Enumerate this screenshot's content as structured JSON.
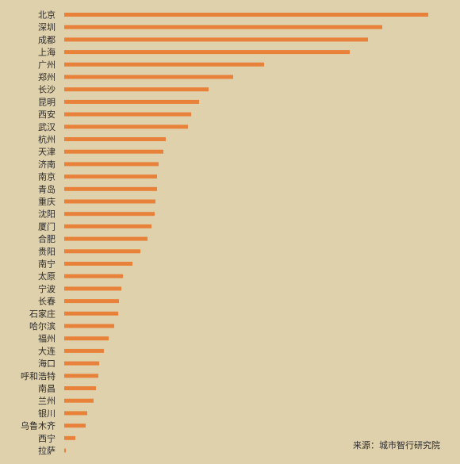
{
  "chart_data": {
    "type": "bar",
    "orientation": "horizontal",
    "categories": [
      "北京",
      "深圳",
      "成都",
      "上海",
      "广州",
      "郑州",
      "长沙",
      "昆明",
      "西安",
      "武汉",
      "杭州",
      "天津",
      "济南",
      "南京",
      "青岛",
      "重庆",
      "沈阳",
      "厦门",
      "合肥",
      "贵阳",
      "南宁",
      "太原",
      "宁波",
      "长春",
      "石家庄",
      "哈尔滨",
      "福州",
      "大连",
      "海口",
      "呼和浩特",
      "南昌",
      "兰州",
      "银川",
      "乌鲁木齐",
      "西宁",
      "拉萨"
    ],
    "values": [
      459,
      401,
      383,
      360,
      252,
      213,
      182,
      170,
      160,
      156,
      128,
      125,
      119,
      117,
      117,
      115,
      114,
      110,
      105,
      96,
      86,
      74,
      72,
      69,
      68,
      63,
      56,
      50,
      44,
      43,
      40,
      37,
      29,
      27,
      14,
      2
    ],
    "bar_color": "#e8823a",
    "background_color": "#e0d1ad",
    "grid": false,
    "legend": "none",
    "title": "",
    "xlabel": "",
    "ylabel": ""
  },
  "source": "来源：城市智行研究院"
}
